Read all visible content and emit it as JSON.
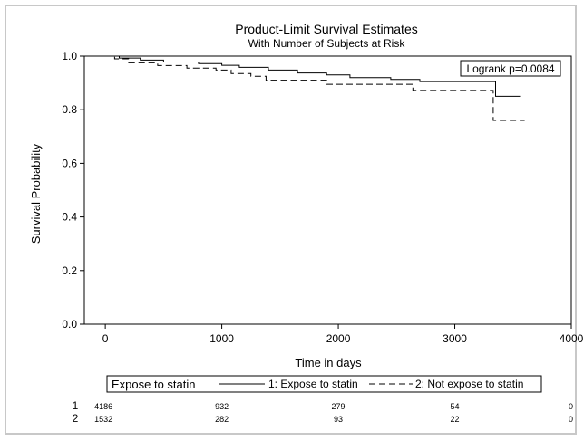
{
  "chart_data": {
    "type": "line",
    "title": "Product-Limit Survival Estimates",
    "subtitle": "With Number of Subjects at Risk",
    "xlabel": "Time in days",
    "ylabel": "Survival Probability",
    "xlim": [
      -180,
      4000
    ],
    "ylim": [
      0,
      1.0
    ],
    "x_ticks": [
      0,
      1000,
      2000,
      3000,
      4000
    ],
    "y_ticks": [
      0.0,
      0.2,
      0.4,
      0.6,
      0.8,
      1.0
    ],
    "x_tick_labels": [
      "0",
      "1000",
      "2000",
      "3000",
      "4000"
    ],
    "y_tick_labels": [
      "0.0",
      "0.2",
      "0.4",
      "0.6",
      "0.8",
      "1.0"
    ],
    "grid": false,
    "annotation": "Logrank p=0.0084",
    "legend": {
      "title": "Expose to statin",
      "position": "bottom",
      "entries": [
        "1: Expose to statin",
        "2: Not expose to statin"
      ]
    },
    "series": [
      {
        "name": "1: Expose to statin",
        "style": "solid",
        "points": [
          [
            0,
            1.0
          ],
          [
            120,
            0.993
          ],
          [
            300,
            0.985
          ],
          [
            500,
            0.978
          ],
          [
            800,
            0.972
          ],
          [
            1000,
            0.966
          ],
          [
            1150,
            0.958
          ],
          [
            1400,
            0.948
          ],
          [
            1650,
            0.937
          ],
          [
            1900,
            0.93
          ],
          [
            2100,
            0.92
          ],
          [
            2450,
            0.913
          ],
          [
            2700,
            0.905
          ],
          [
            3350,
            0.905
          ],
          [
            3350,
            0.85
          ],
          [
            3560,
            0.85
          ]
        ]
      },
      {
        "name": "2: Not expose to statin",
        "style": "dashed",
        "points": [
          [
            0,
            1.0
          ],
          [
            80,
            0.99
          ],
          [
            200,
            0.975
          ],
          [
            450,
            0.965
          ],
          [
            700,
            0.955
          ],
          [
            950,
            0.948
          ],
          [
            1080,
            0.935
          ],
          [
            1250,
            0.925
          ],
          [
            1380,
            0.91
          ],
          [
            1700,
            0.91
          ],
          [
            1900,
            0.895
          ],
          [
            2200,
            0.895
          ],
          [
            2640,
            0.872
          ],
          [
            3330,
            0.872
          ],
          [
            3330,
            0.818
          ],
          [
            3330,
            0.76
          ],
          [
            3600,
            0.76
          ]
        ]
      }
    ],
    "at_risk": {
      "times": [
        0,
        1000,
        2000,
        3000,
        4000
      ],
      "rows": [
        {
          "label": "1",
          "values": [
            "4186",
            "932",
            "279",
            "54",
            "0"
          ]
        },
        {
          "label": "2",
          "values": [
            "1532",
            "282",
            "93",
            "22",
            "0"
          ]
        }
      ]
    }
  }
}
